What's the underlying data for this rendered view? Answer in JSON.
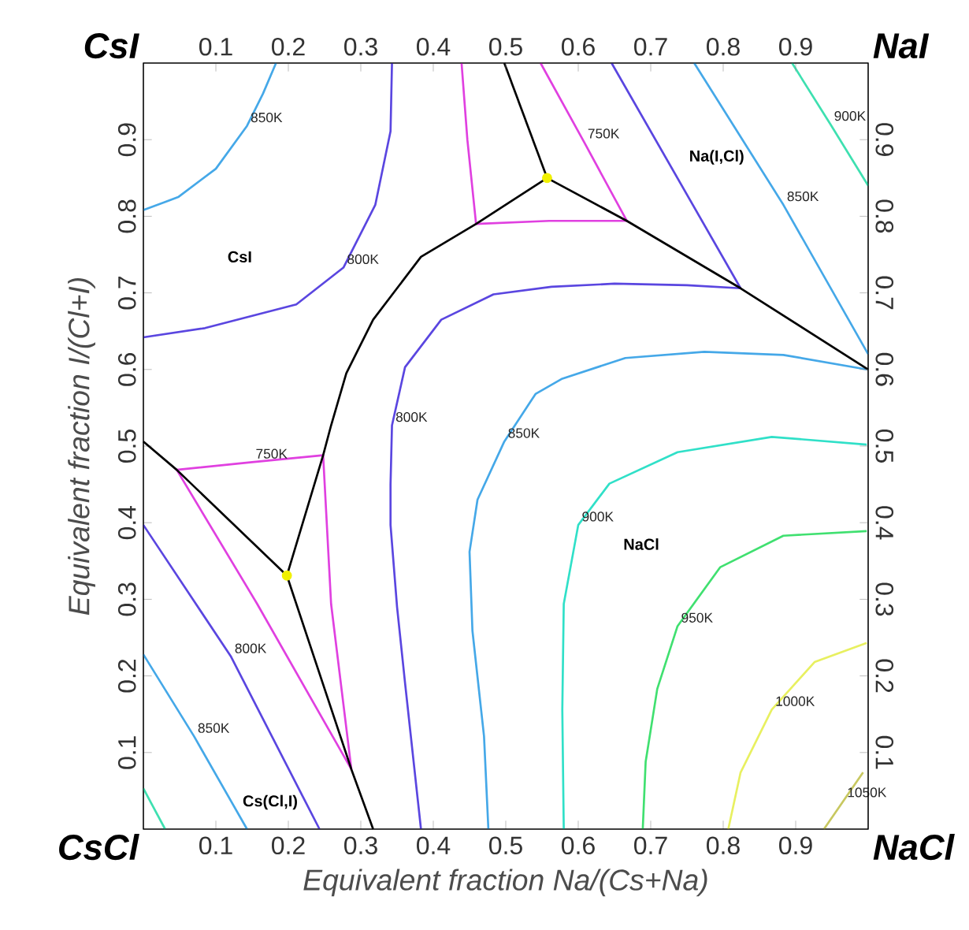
{
  "chart_data": {
    "type": "line",
    "xlabel": "Equivalent fraction  Na/(Cs+Na)",
    "ylabel": "Equivalent fraction  I/(Cl+I)",
    "xlim": [
      0,
      1
    ],
    "ylim": [
      0,
      1
    ],
    "x2lim": [
      0,
      1
    ],
    "y2lim": [
      0,
      1
    ],
    "xticks": [
      0.1,
      0.2,
      0.3,
      0.4,
      0.5,
      0.6,
      0.7,
      0.8,
      0.9
    ],
    "yticks": [
      0.1,
      0.2,
      0.3,
      0.4,
      0.5,
      0.6,
      0.7,
      0.8,
      0.9
    ],
    "x2ticks": [
      0.1,
      0.2,
      0.3,
      0.4,
      0.5,
      0.6,
      0.7,
      0.8,
      0.9
    ],
    "y2ticks": [
      0.1,
      0.2,
      0.3,
      0.4,
      0.5,
      0.6,
      0.7,
      0.8,
      0.9
    ],
    "series": [
      {
        "color": "#45a8e8",
        "x": [
          0.183,
          0.165,
          0.143,
          0.1,
          0.048,
          0
        ],
        "values": [
          1,
          0.96,
          0.918,
          0.862,
          0.825,
          0.808
        ]
      },
      {
        "color": "#5a46e0",
        "x": [
          0.343,
          0.341,
          0.32,
          0.276,
          0.211,
          0.085,
          0
        ],
        "values": [
          1,
          0.911,
          0.815,
          0.733,
          0.685,
          0.654,
          0.642
        ]
      },
      {
        "color": "#e040e0",
        "x": [
          0.439,
          0.447,
          0.459,
          0.56,
          0.667,
          0.608,
          0.548
        ],
        "values": [
          1,
          0.9,
          0.79,
          0.794,
          0.794,
          0.897,
          1
        ]
      },
      {
        "color": "#5a46e0",
        "x": [
          0.646,
          0.824,
          0.75,
          0.65,
          0.563,
          0.483,
          0.411,
          0.361,
          0.343,
          0.341,
          0.341,
          0.35,
          0.361,
          0.383
        ],
        "values": [
          1,
          0.706,
          0.71,
          0.712,
          0.708,
          0.698,
          0.665,
          0.603,
          0.527,
          0.45,
          0.397,
          0.29,
          0.191,
          0
        ]
      },
      {
        "color": "#45a8e8",
        "x": [
          0.998,
          0.883,
          0.774,
          0.665,
          0.578,
          0.541,
          0.498,
          0.461,
          0.45,
          0.454,
          0.47,
          0.476
        ],
        "values": [
          0.6,
          0.619,
          0.623,
          0.615,
          0.588,
          0.568,
          0.506,
          0.43,
          0.362,
          0.259,
          0.121,
          0
        ]
      },
      {
        "color": "#45a8e8",
        "x": [
          0.76,
          0.883,
          1
        ],
        "values": [
          1,
          0.815,
          0.62
        ]
      },
      {
        "color": "#3ee0b0",
        "x": [
          0.895,
          0.948,
          1
        ],
        "values": [
          1,
          0.92,
          0.84
        ]
      },
      {
        "color": "#30e0c8",
        "x": [
          0.998,
          0.867,
          0.737,
          0.643,
          0.6,
          0.58,
          0.578,
          0.58
        ],
        "values": [
          0.502,
          0.512,
          0.492,
          0.451,
          0.397,
          0.294,
          0.156,
          0
        ]
      },
      {
        "color": "#40e070",
        "x": [
          0.998,
          0.883,
          0.796,
          0.737,
          0.709,
          0.693,
          0.689
        ],
        "values": [
          0.389,
          0.383,
          0.342,
          0.265,
          0.183,
          0.088,
          0
        ]
      },
      {
        "color": "#e8f060",
        "x": [
          0.998,
          0.926,
          0.867,
          0.824,
          0.807
        ],
        "values": [
          0.243,
          0.218,
          0.156,
          0.074,
          0
        ]
      },
      {
        "color": "#c8c860",
        "x": [
          0.993,
          0.966,
          0.939
        ],
        "values": [
          0.074,
          0.037,
          0
        ]
      },
      {
        "color": "#e040e0",
        "x": [
          0.046,
          0.15,
          0.248,
          0.259,
          0.287
        ],
        "values": [
          0.469,
          0.479,
          0.488,
          0.294,
          0.078
        ]
      },
      {
        "color": "#e040e0",
        "x": [
          0.046,
          0.157,
          0.287
        ],
        "values": [
          0.469,
          0.294,
          0.078
        ]
      },
      {
        "color": "#5a46e0",
        "x": [
          0,
          0.121,
          0.243
        ],
        "values": [
          0.397,
          0.225,
          0
        ]
      },
      {
        "color": "#45a8e8",
        "x": [
          0,
          0.07,
          0.143
        ],
        "values": [
          0.228,
          0.121,
          0
        ]
      },
      {
        "color": "#3ee0b0",
        "x": [
          0,
          0.03
        ],
        "values": [
          0.053,
          0
        ]
      },
      {
        "color": "#000000",
        "x": [
          0.498,
          0.557
        ],
        "values": [
          1,
          0.85
        ]
      },
      {
        "color": "#000000",
        "x": [
          0.557,
          0.667,
          0.824,
          1
        ],
        "values": [
          0.85,
          0.794,
          0.706,
          0.6
        ]
      },
      {
        "color": "#000000",
        "x": [
          0.557,
          0.459,
          0.383,
          0.317,
          0.28,
          0.259,
          0.248,
          0.198
        ],
        "values": [
          0.85,
          0.79,
          0.747,
          0.665,
          0.595,
          0.527,
          0.488,
          0.331
        ]
      },
      {
        "color": "#000000",
        "x": [
          0,
          0.046,
          0.198
        ],
        "values": [
          0.506,
          0.469,
          0.331
        ]
      },
      {
        "color": "#000000",
        "x": [
          0.198,
          0.287,
          0.317
        ],
        "values": [
          0.331,
          0.078,
          0
        ]
      },
      {
        "type": "scatter",
        "marker": "circle",
        "color": "#f0f000",
        "x": [
          0.557,
          0.198
        ],
        "values": [
          0.85,
          0.331
        ]
      }
    ],
    "annotations": [
      "CsI",
      "NaI",
      "CsCl",
      "NaCl",
      "CsI",
      "Na(I,Cl)",
      "NaCl",
      "Cs(Cl,I)",
      {
        "text": "850K",
        "x": 0.143,
        "y": 0.918
      },
      {
        "text": "800K",
        "x": 0.276,
        "y": 0.733
      },
      {
        "text": "750K",
        "x": 0.608,
        "y": 0.897
      },
      {
        "text": "850K",
        "x": 0.883,
        "y": 0.815
      },
      {
        "text": "900K",
        "x": 0.948,
        "y": 0.92
      },
      {
        "text": "750K",
        "x": 0.15,
        "y": 0.479
      },
      {
        "text": "800K",
        "x": 0.343,
        "y": 0.527
      },
      {
        "text": "850K",
        "x": 0.498,
        "y": 0.506
      },
      {
        "text": "800K",
        "x": 0.121,
        "y": 0.225
      },
      {
        "text": "850K",
        "x": 0.07,
        "y": 0.121
      },
      {
        "text": "900K",
        "x": 0.6,
        "y": 0.397
      },
      {
        "text": "950K",
        "x": 0.737,
        "y": 0.265
      },
      {
        "text": "1000K",
        "x": 0.867,
        "y": 0.156
      },
      {
        "text": "1050K",
        "x": 0.966,
        "y": 0.037
      }
    ]
  }
}
